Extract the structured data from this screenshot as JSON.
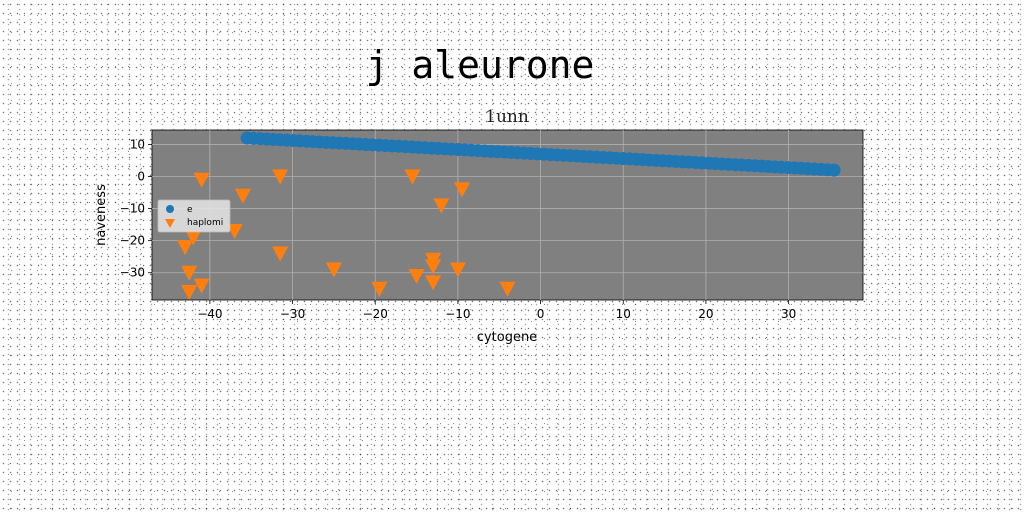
{
  "chart_data": {
    "type": "scatter",
    "title": "j aleurone",
    "subtitle": "1unn",
    "xlabel": "cytogene",
    "ylabel": "naveness",
    "xlim": [
      -47,
      39
    ],
    "ylim": [
      -38.5,
      14.5
    ],
    "xticks": [
      -40,
      -30,
      -20,
      -10,
      0,
      10,
      20,
      30
    ],
    "yticks": [
      10,
      0,
      -10,
      -20,
      -30
    ],
    "grid": true,
    "legend_position": "center-left",
    "plot_background": "#808080",
    "series": [
      {
        "name": "e",
        "marker": "circle",
        "color": "#1f77b4",
        "line": {
          "x_start": -35.5,
          "y_start": 12.0,
          "x_end": 35.5,
          "y_end": 2.0,
          "count": 90
        }
      },
      {
        "name": "haplomi",
        "marker": "triangle-down",
        "color": "#ff7f0e",
        "points": [
          {
            "x": -41,
            "y": -1
          },
          {
            "x": -36,
            "y": -6
          },
          {
            "x": -31.5,
            "y": 0
          },
          {
            "x": -37,
            "y": -17
          },
          {
            "x": -42,
            "y": -19
          },
          {
            "x": -43,
            "y": -22
          },
          {
            "x": -42.5,
            "y": -30
          },
          {
            "x": -42.5,
            "y": -36
          },
          {
            "x": -41,
            "y": -34
          },
          {
            "x": -31.5,
            "y": -24
          },
          {
            "x": -25,
            "y": -29
          },
          {
            "x": -19.5,
            "y": -35
          },
          {
            "x": -15.5,
            "y": 0
          },
          {
            "x": -12,
            "y": -9
          },
          {
            "x": -9.5,
            "y": -4
          },
          {
            "x": -13,
            "y": -26
          },
          {
            "x": -13,
            "y": -28
          },
          {
            "x": -15,
            "y": -31
          },
          {
            "x": -13,
            "y": -33
          },
          {
            "x": -10,
            "y": -29
          },
          {
            "x": -4,
            "y": -35
          }
        ]
      }
    ]
  }
}
